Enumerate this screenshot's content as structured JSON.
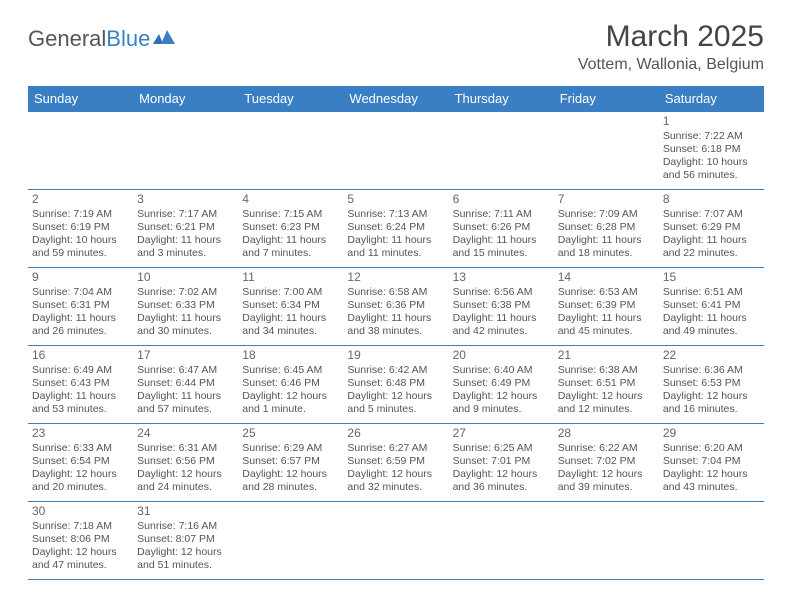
{
  "branding": {
    "logo_text_1": "General",
    "logo_text_2": "Blue",
    "logo_color_1": "#555555",
    "logo_color_2": "#3a7fc4"
  },
  "header": {
    "month": "March 2025",
    "location": "Vottem, Wallonia, Belgium"
  },
  "style": {
    "header_bg": "#3a7fc4",
    "header_fg": "#ffffff",
    "cell_border": "#3a7fc4",
    "text_color": "#555555",
    "daynum_color": "#666666",
    "title_fontsize": 30,
    "location_fontsize": 16,
    "weekday_fontsize": 13,
    "cell_fontsize": 10.5
  },
  "weekdays": [
    "Sunday",
    "Monday",
    "Tuesday",
    "Wednesday",
    "Thursday",
    "Friday",
    "Saturday"
  ],
  "weeks": [
    [
      null,
      null,
      null,
      null,
      null,
      null,
      {
        "n": "1",
        "sunrise": "7:22 AM",
        "sunset": "6:18 PM",
        "daylight": "10 hours and 56 minutes."
      }
    ],
    [
      {
        "n": "2",
        "sunrise": "7:19 AM",
        "sunset": "6:19 PM",
        "daylight": "10 hours and 59 minutes."
      },
      {
        "n": "3",
        "sunrise": "7:17 AM",
        "sunset": "6:21 PM",
        "daylight": "11 hours and 3 minutes."
      },
      {
        "n": "4",
        "sunrise": "7:15 AM",
        "sunset": "6:23 PM",
        "daylight": "11 hours and 7 minutes."
      },
      {
        "n": "5",
        "sunrise": "7:13 AM",
        "sunset": "6:24 PM",
        "daylight": "11 hours and 11 minutes."
      },
      {
        "n": "6",
        "sunrise": "7:11 AM",
        "sunset": "6:26 PM",
        "daylight": "11 hours and 15 minutes."
      },
      {
        "n": "7",
        "sunrise": "7:09 AM",
        "sunset": "6:28 PM",
        "daylight": "11 hours and 18 minutes."
      },
      {
        "n": "8",
        "sunrise": "7:07 AM",
        "sunset": "6:29 PM",
        "daylight": "11 hours and 22 minutes."
      }
    ],
    [
      {
        "n": "9",
        "sunrise": "7:04 AM",
        "sunset": "6:31 PM",
        "daylight": "11 hours and 26 minutes."
      },
      {
        "n": "10",
        "sunrise": "7:02 AM",
        "sunset": "6:33 PM",
        "daylight": "11 hours and 30 minutes."
      },
      {
        "n": "11",
        "sunrise": "7:00 AM",
        "sunset": "6:34 PM",
        "daylight": "11 hours and 34 minutes."
      },
      {
        "n": "12",
        "sunrise": "6:58 AM",
        "sunset": "6:36 PM",
        "daylight": "11 hours and 38 minutes."
      },
      {
        "n": "13",
        "sunrise": "6:56 AM",
        "sunset": "6:38 PM",
        "daylight": "11 hours and 42 minutes."
      },
      {
        "n": "14",
        "sunrise": "6:53 AM",
        "sunset": "6:39 PM",
        "daylight": "11 hours and 45 minutes."
      },
      {
        "n": "15",
        "sunrise": "6:51 AM",
        "sunset": "6:41 PM",
        "daylight": "11 hours and 49 minutes."
      }
    ],
    [
      {
        "n": "16",
        "sunrise": "6:49 AM",
        "sunset": "6:43 PM",
        "daylight": "11 hours and 53 minutes."
      },
      {
        "n": "17",
        "sunrise": "6:47 AM",
        "sunset": "6:44 PM",
        "daylight": "11 hours and 57 minutes."
      },
      {
        "n": "18",
        "sunrise": "6:45 AM",
        "sunset": "6:46 PM",
        "daylight": "12 hours and 1 minute."
      },
      {
        "n": "19",
        "sunrise": "6:42 AM",
        "sunset": "6:48 PM",
        "daylight": "12 hours and 5 minutes."
      },
      {
        "n": "20",
        "sunrise": "6:40 AM",
        "sunset": "6:49 PM",
        "daylight": "12 hours and 9 minutes."
      },
      {
        "n": "21",
        "sunrise": "6:38 AM",
        "sunset": "6:51 PM",
        "daylight": "12 hours and 12 minutes."
      },
      {
        "n": "22",
        "sunrise": "6:36 AM",
        "sunset": "6:53 PM",
        "daylight": "12 hours and 16 minutes."
      }
    ],
    [
      {
        "n": "23",
        "sunrise": "6:33 AM",
        "sunset": "6:54 PM",
        "daylight": "12 hours and 20 minutes."
      },
      {
        "n": "24",
        "sunrise": "6:31 AM",
        "sunset": "6:56 PM",
        "daylight": "12 hours and 24 minutes."
      },
      {
        "n": "25",
        "sunrise": "6:29 AM",
        "sunset": "6:57 PM",
        "daylight": "12 hours and 28 minutes."
      },
      {
        "n": "26",
        "sunrise": "6:27 AM",
        "sunset": "6:59 PM",
        "daylight": "12 hours and 32 minutes."
      },
      {
        "n": "27",
        "sunrise": "6:25 AM",
        "sunset": "7:01 PM",
        "daylight": "12 hours and 36 minutes."
      },
      {
        "n": "28",
        "sunrise": "6:22 AM",
        "sunset": "7:02 PM",
        "daylight": "12 hours and 39 minutes."
      },
      {
        "n": "29",
        "sunrise": "6:20 AM",
        "sunset": "7:04 PM",
        "daylight": "12 hours and 43 minutes."
      }
    ],
    [
      {
        "n": "30",
        "sunrise": "7:18 AM",
        "sunset": "8:06 PM",
        "daylight": "12 hours and 47 minutes."
      },
      {
        "n": "31",
        "sunrise": "7:16 AM",
        "sunset": "8:07 PM",
        "daylight": "12 hours and 51 minutes."
      },
      null,
      null,
      null,
      null,
      null
    ]
  ],
  "labels": {
    "sunrise_prefix": "Sunrise: ",
    "sunset_prefix": "Sunset: ",
    "daylight_prefix": "Daylight: "
  }
}
